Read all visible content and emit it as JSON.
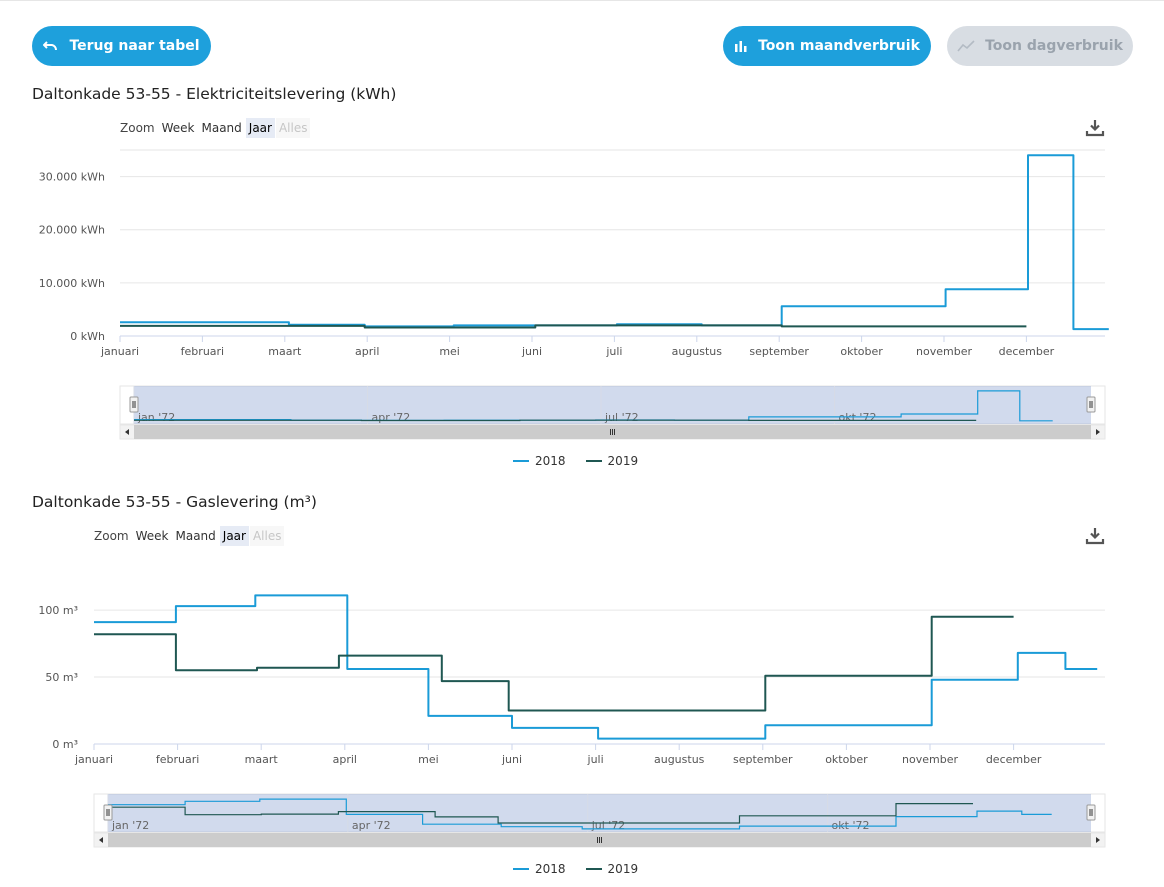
{
  "colors": {
    "accent": "#1ea0dc",
    "s2018": "#1a9bd7",
    "s2019": "#1f5752",
    "disabled": "#d8dde3"
  },
  "toolbar": {
    "back_label": "Terug naar tabel",
    "month_label": "Toon maandverbruik",
    "day_label": "Toon dagverbruik"
  },
  "chart1": {
    "title": "Daltonkade 53-55 - Elektriciteitslevering (kWh)",
    "zoom": {
      "label": "Zoom",
      "week": "Week",
      "maand": "Maand",
      "jaar": "Jaar",
      "alles": "Alles",
      "selected": "Jaar"
    },
    "navigator_labels": [
      "jan '72",
      "apr '72",
      "jul '72",
      "okt '72"
    ],
    "legend": [
      "2018",
      "2019"
    ]
  },
  "chart2": {
    "title": "Daltonkade 53-55 - Gaslevering (m³)",
    "zoom": {
      "label": "Zoom",
      "week": "Week",
      "maand": "Maand",
      "jaar": "Jaar",
      "alles": "Alles",
      "selected": "Jaar"
    },
    "navigator_labels": [
      "jan '72",
      "apr '72",
      "jul '72",
      "okt '72"
    ],
    "legend": [
      "2018",
      "2019"
    ]
  },
  "chart_data": [
    {
      "type": "line",
      "title": "Daltonkade 53-55 - Elektriciteitslevering (kWh)",
      "xlabel": "",
      "ylabel": "",
      "x_ticks": [
        "januari",
        "februari",
        "maart",
        "april",
        "mei",
        "juni",
        "juli",
        "augustus",
        "september",
        "oktober",
        "november",
        "december"
      ],
      "y_ticks": [
        "0 kWh",
        "10.000 kWh",
        "20.000 kWh",
        "30.000 kWh"
      ],
      "y_tick_values": [
        0,
        10000,
        20000,
        30000
      ],
      "ylim": [
        0,
        35000
      ],
      "grid": true,
      "legend": "bottom-center",
      "series": [
        {
          "name": "2018",
          "color": "#1a9bd7",
          "x": [
            0.0,
            2.05,
            2.05,
            2.97,
            2.97,
            4.05,
            4.05,
            5.04,
            5.04,
            6.03,
            6.03,
            7.06,
            7.06,
            8.03,
            8.03,
            10.02,
            10.02,
            11.02,
            11.02,
            11.57,
            11.57,
            12.0
          ],
          "values": [
            2600,
            2600,
            2100,
            2100,
            1800,
            1800,
            2000,
            2000,
            2000,
            2000,
            2200,
            2200,
            2000,
            2000,
            5600,
            5600,
            8800,
            8800,
            34000,
            34000,
            1300,
            1300
          ]
        },
        {
          "name": "2019",
          "color": "#1f5752",
          "x": [
            0.0,
            2.97,
            2.97,
            5.04,
            5.04,
            8.03,
            8.03,
            11.0
          ],
          "values": [
            1900,
            1900,
            1600,
            1600,
            2000,
            2000,
            1800,
            1800
          ]
        }
      ]
    },
    {
      "type": "line",
      "title": "Daltonkade 53-55 - Gaslevering (m³)",
      "xlabel": "",
      "ylabel": "",
      "x_ticks": [
        "januari",
        "februari",
        "maart",
        "april",
        "mei",
        "juni",
        "juli",
        "augustus",
        "september",
        "oktober",
        "november",
        "december"
      ],
      "y_ticks": [
        "0 m³",
        "50 m³",
        "100 m³"
      ],
      "y_tick_values": [
        0,
        50,
        100
      ],
      "ylim": [
        0,
        115
      ],
      "grid": true,
      "legend": "bottom-center",
      "series": [
        {
          "name": "2018",
          "color": "#1a9bd7",
          "x": [
            0.0,
            0.98,
            0.98,
            1.93,
            1.93,
            3.03,
            3.03,
            4.0,
            4.0,
            5.0,
            5.0,
            6.03,
            6.03,
            8.03,
            8.03,
            10.02,
            10.02,
            11.05,
            11.05,
            11.62,
            11.62,
            12.0
          ],
          "values": [
            91,
            91,
            103,
            103,
            111,
            111,
            56,
            56,
            21,
            21,
            12,
            12,
            4,
            4,
            14,
            14,
            48,
            48,
            68,
            68,
            56,
            56
          ]
        },
        {
          "name": "2019",
          "color": "#1f5752",
          "x": [
            0.0,
            0.98,
            0.98,
            1.95,
            1.95,
            2.93,
            2.93,
            4.16,
            4.16,
            4.96,
            4.96,
            8.03,
            8.03,
            10.02,
            10.02,
            11.0
          ],
          "values": [
            82,
            82,
            55,
            55,
            57,
            57,
            66,
            66,
            47,
            47,
            25,
            25,
            51,
            51,
            95,
            95
          ]
        }
      ]
    }
  ]
}
